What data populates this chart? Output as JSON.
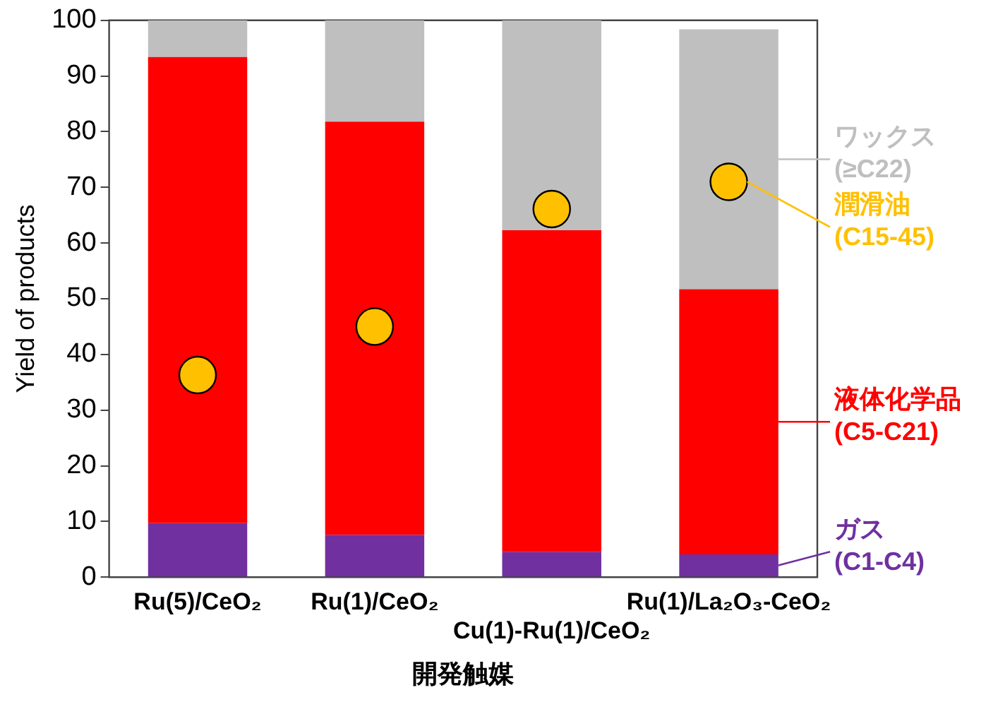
{
  "chart_data": {
    "type": "bar",
    "stacked": true,
    "xlabel": "開発触媒",
    "ylabel": "Yield of products",
    "categories": [
      "Ru(5)/CeO₂",
      "Ru(1)/CeO₂",
      "Cu(1)-Ru(1)/CeO₂",
      "Ru(1)/La₂O₃-CeO₂"
    ],
    "ylim": [
      0,
      100
    ],
    "yticks": [
      0,
      10,
      20,
      30,
      40,
      50,
      60,
      70,
      80,
      90,
      100
    ],
    "grid": false,
    "legend": "right",
    "series": [
      {
        "name": "ガス (C1-C4)",
        "color": "#7030a0",
        "values": [
          9.7,
          7.6,
          4.5,
          4.1
        ]
      },
      {
        "name": "液体化学品 (C5-C21)",
        "color": "#ff0000",
        "values": [
          83.7,
          74.2,
          57.8,
          47.6
        ]
      },
      {
        "name": "ワックス (≥C22)",
        "color": "#bfbfbf",
        "values": [
          6.6,
          18.2,
          37.7,
          46.7
        ]
      },
      {
        "name": "潤滑油 (C15-45)",
        "type": "scatter",
        "marker": "circle",
        "color": "#ffc000",
        "x": [
          "Ru(5)/CeO₂",
          "Ru(1)/CeO₂",
          "Cu(1)-Ru(1)/CeO₂",
          "Ru(1)/La₂O₃-CeO₂"
        ],
        "values": [
          36.3,
          45.0,
          66.1,
          71.0
        ]
      }
    ]
  }
}
